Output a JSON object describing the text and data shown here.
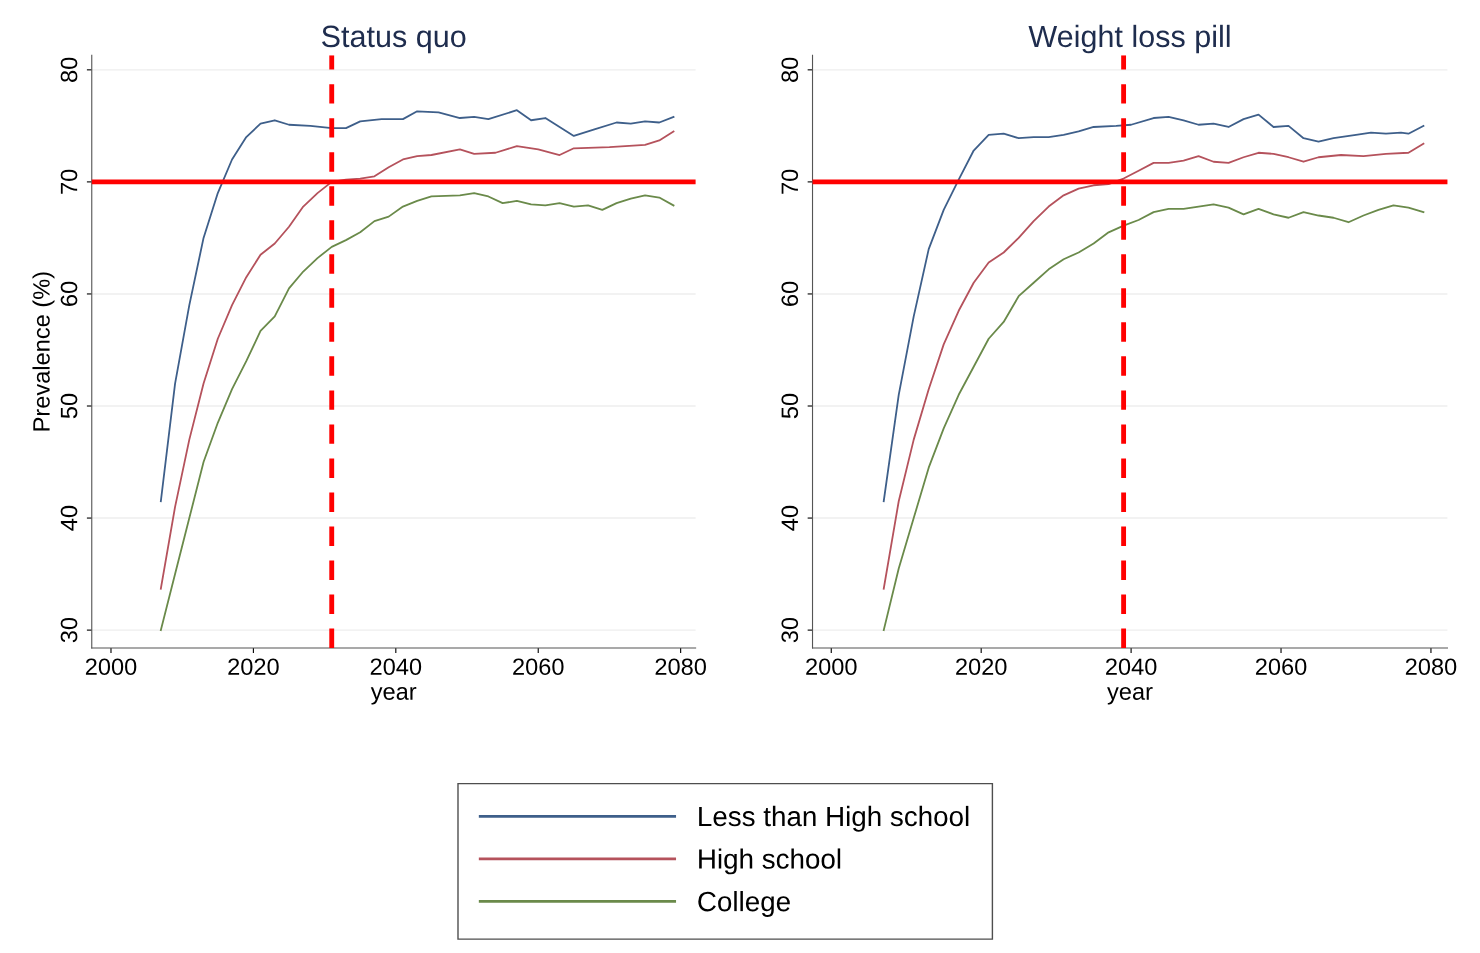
{
  "chart_data": [
    {
      "type": "line",
      "title": "Status quo",
      "xlabel": "year",
      "ylabel": "Prevalence (%)",
      "xlim": [
        1997.3,
        2082.1
      ],
      "ylim": [
        28.4,
        81.3
      ],
      "xticks": [
        2000,
        2020,
        2040,
        2060,
        2080
      ],
      "yticks": [
        30,
        40,
        50,
        60,
        70,
        80
      ],
      "grid": "y",
      "legend": "bottom",
      "marker": "none",
      "line_style": "solid",
      "series": [
        {
          "name": "Less than High school",
          "color": "#3e5f8a",
          "x": [
            2007,
            2009,
            2011,
            2013,
            2015,
            2017,
            2019,
            2021,
            2023,
            2025,
            2028,
            2031,
            2033,
            2035,
            2038,
            2041,
            2043,
            2046,
            2049,
            2051,
            2053,
            2057,
            2059,
            2061,
            2065,
            2068,
            2071,
            2073,
            2075,
            2077,
            2079
          ],
          "values": [
            41.5,
            52,
            59,
            65,
            69,
            72,
            74,
            75.2,
            75.5,
            75.1,
            75,
            74.8,
            74.8,
            75.4,
            75.6,
            75.6,
            76.3,
            76.2,
            75.7,
            75.8,
            75.6,
            76.4,
            75.5,
            75.7,
            74.1,
            74.7,
            75.3,
            75.2,
            75.4,
            75.3,
            75.8
          ]
        },
        {
          "name": "High school",
          "color": "#b5525c",
          "x": [
            2007,
            2009,
            2011,
            2013,
            2015,
            2017,
            2019,
            2021,
            2023,
            2025,
            2027,
            2029,
            2031,
            2033,
            2035,
            2037,
            2039,
            2041,
            2043,
            2045,
            2049,
            2051,
            2054,
            2057,
            2060,
            2063,
            2065,
            2070,
            2075,
            2077,
            2079
          ],
          "values": [
            33.7,
            41,
            47,
            52,
            56,
            59,
            61.5,
            63.5,
            64.5,
            66,
            67.8,
            69,
            70,
            70.2,
            70.3,
            70.5,
            71.3,
            72,
            72.3,
            72.4,
            72.9,
            72.5,
            72.6,
            73.2,
            72.9,
            72.4,
            73,
            73.1,
            73.3,
            73.7,
            74.5
          ]
        },
        {
          "name": "College",
          "color": "#6a8a4a",
          "x": [
            2007,
            2009,
            2011,
            2013,
            2015,
            2017,
            2019,
            2021,
            2023,
            2025,
            2027,
            2029,
            2031,
            2033,
            2035,
            2037,
            2039,
            2041,
            2043,
            2045,
            2049,
            2051,
            2053,
            2055,
            2057,
            2059,
            2061,
            2063,
            2065,
            2067,
            2069,
            2071,
            2073,
            2075,
            2077,
            2079
          ],
          "values": [
            30,
            35,
            40,
            45,
            48.5,
            51.5,
            54,
            56.7,
            58,
            60.5,
            62,
            63.2,
            64.2,
            64.8,
            65.5,
            66.5,
            66.9,
            67.8,
            68.3,
            68.7,
            68.8,
            69,
            68.7,
            68.1,
            68.3,
            68,
            67.9,
            68.1,
            67.8,
            67.9,
            67.5,
            68.1,
            68.5,
            68.8,
            68.6,
            67.9
          ]
        }
      ],
      "ref_lines": [
        {
          "axis": "y",
          "value": 70,
          "color": "#ff0000",
          "line_style": "solid"
        },
        {
          "axis": "x",
          "value": 2031,
          "color": "#ff0000",
          "line_style": "dashed"
        }
      ]
    },
    {
      "type": "line",
      "title": "Weight loss pill",
      "xlabel": "year",
      "xlim": [
        1997.5,
        2082.2
      ],
      "ylim": [
        28.4,
        81.3
      ],
      "xticks": [
        2000,
        2020,
        2040,
        2060,
        2080
      ],
      "yticks": [
        30,
        40,
        50,
        60,
        70,
        80
      ],
      "grid": "y",
      "marker": "none",
      "line_style": "solid",
      "series": [
        {
          "color": "#3e5f8a",
          "x": [
            2007,
            2009,
            2011,
            2013,
            2015,
            2017,
            2019,
            2021,
            2023,
            2025,
            2027,
            2029,
            2031,
            2033,
            2035,
            2038,
            2040,
            2043,
            2045,
            2047,
            2049,
            2051,
            2053,
            2055,
            2057,
            2059,
            2061,
            2063,
            2065,
            2067,
            2070,
            2072,
            2074,
            2076,
            2077,
            2079
          ],
          "values": [
            41.5,
            51,
            58,
            64,
            67.5,
            70.2,
            72.8,
            74.2,
            74.3,
            73.9,
            74,
            74,
            74.2,
            74.5,
            74.9,
            75,
            75.1,
            75.7,
            75.8,
            75.5,
            75.1,
            75.2,
            74.9,
            75.6,
            76,
            74.9,
            75,
            73.9,
            73.6,
            73.9,
            74.2,
            74.4,
            74.3,
            74.4,
            74.3,
            75
          ]
        },
        {
          "color": "#b5525c",
          "x": [
            2007,
            2009,
            2011,
            2013,
            2015,
            2017,
            2019,
            2021,
            2023,
            2025,
            2027,
            2029,
            2031,
            2033,
            2035,
            2037,
            2039,
            2041,
            2043,
            2045,
            2047,
            2049,
            2051,
            2053,
            2055,
            2057,
            2059,
            2061,
            2063,
            2065,
            2068,
            2071,
            2074,
            2077,
            2079
          ],
          "values": [
            33.7,
            41.5,
            47,
            51.5,
            55.5,
            58.5,
            61,
            62.8,
            63.7,
            65,
            66.5,
            67.8,
            68.8,
            69.4,
            69.7,
            69.8,
            70.3,
            71,
            71.7,
            71.7,
            71.9,
            72.3,
            71.8,
            71.7,
            72.2,
            72.6,
            72.5,
            72.2,
            71.8,
            72.2,
            72.4,
            72.3,
            72.5,
            72.6,
            73.4
          ]
        },
        {
          "color": "#6a8a4a",
          "x": [
            2007,
            2009,
            2011,
            2013,
            2015,
            2017,
            2019,
            2021,
            2023,
            2025,
            2027,
            2029,
            2031,
            2033,
            2035,
            2037,
            2039,
            2041,
            2043,
            2045,
            2047,
            2049,
            2051,
            2053,
            2055,
            2057,
            2059,
            2061,
            2063,
            2065,
            2067,
            2069,
            2071,
            2073,
            2075,
            2077,
            2079
          ],
          "values": [
            30,
            35.5,
            40,
            44.5,
            48,
            51,
            53.5,
            56,
            57.5,
            59.8,
            61,
            62.2,
            63.1,
            63.7,
            64.5,
            65.5,
            66.1,
            66.6,
            67.3,
            67.6,
            67.6,
            67.8,
            68,
            67.7,
            67.1,
            67.6,
            67.1,
            66.8,
            67.3,
            67,
            66.8,
            66.4,
            67,
            67.5,
            67.9,
            67.7,
            67.3
          ]
        }
      ],
      "ref_lines": [
        {
          "axis": "y",
          "value": 70,
          "color": "#ff0000",
          "line_style": "solid"
        },
        {
          "axis": "x",
          "value": 2039,
          "color": "#ff0000",
          "line_style": "dashed"
        }
      ]
    }
  ]
}
